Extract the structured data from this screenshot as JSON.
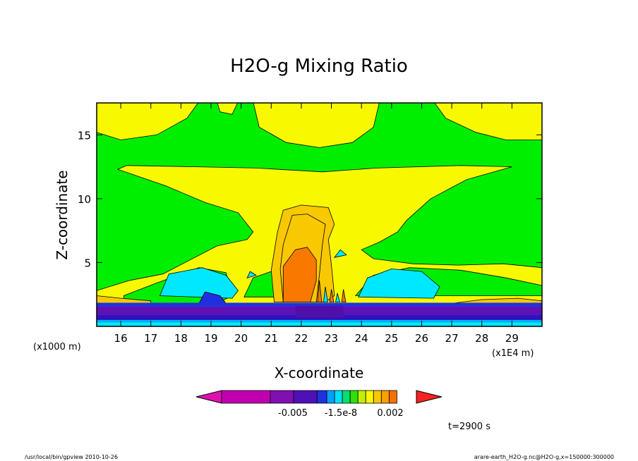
{
  "chart_data": {
    "type": "heatmap",
    "title": "H2O-g Mixing Ratio",
    "xlabel": "X-coordinate",
    "ylabel": "Z-coordinate",
    "x_scale_label": "(x1E4 m)",
    "y_scale_label": "(x1000 m)",
    "xlim": [
      15.2,
      30.0
    ],
    "ylim": [
      0,
      17.5
    ],
    "x_ticks": [
      "16",
      "17",
      "18",
      "19",
      "20",
      "21",
      "22",
      "23",
      "24",
      "25",
      "26",
      "27",
      "28",
      "29"
    ],
    "y_ticks": [
      "5",
      "10",
      "15"
    ],
    "grid": false,
    "colorbar": {
      "colors": [
        "#e010b0",
        "#c000b0",
        "#8010b0",
        "#5010b8",
        "#2030e0",
        "#00a0ff",
        "#00e0ff",
        "#00e070",
        "#30e000",
        "#c0f000",
        "#f8f800",
        "#f8c800",
        "#f8a000",
        "#f87000",
        "#f82020"
      ],
      "labels": [
        "-0.005",
        "-1.5e-8",
        "0.002"
      ]
    },
    "annotation": "t=2900 s",
    "footer_left": "/usr/local/bin/gpview   2010-10-26",
    "footer_right": "arare-earth_H2O-g.nc@H2O-g,x=150000:300000",
    "regions": [
      {
        "level": "green",
        "color": "#00ee00"
      },
      {
        "level": "yellow",
        "color": "#f8f800"
      },
      {
        "level": "light-orange",
        "color": "#f8c800"
      },
      {
        "level": "orange",
        "color": "#f87800"
      },
      {
        "level": "cyan",
        "color": "#00e8ff"
      },
      {
        "level": "blue",
        "color": "#2030e0"
      },
      {
        "level": "purple",
        "color": "#6010b8"
      }
    ]
  }
}
